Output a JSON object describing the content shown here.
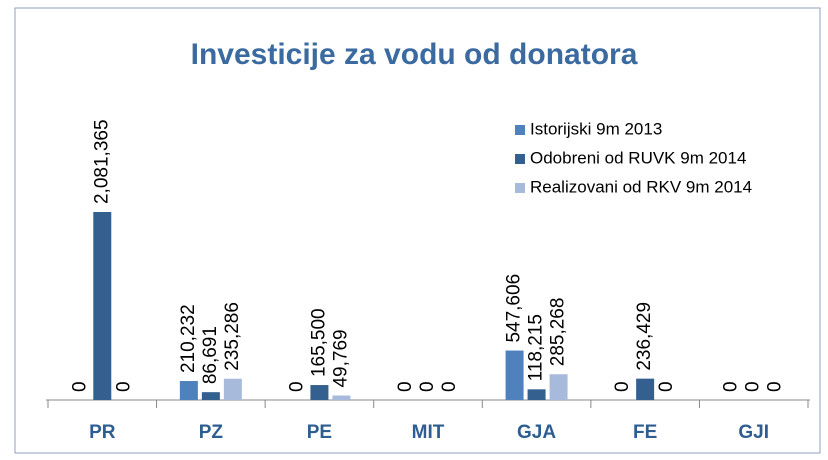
{
  "chart_data": {
    "type": "bar",
    "title": "Investicije za vodu od donatora",
    "categories": [
      "PR",
      "PZ",
      "PE",
      "MIT",
      "GJA",
      "FE",
      "GJI"
    ],
    "series": [
      {
        "name": "Istorijski 9m 2013",
        "color": "#4f81bd",
        "values": [
          0,
          210232,
          0,
          0,
          547606,
          0,
          0
        ],
        "value_labels": [
          "0",
          "210,232",
          "0",
          "0",
          "547,606",
          "0",
          "0"
        ]
      },
      {
        "name": "Odobreni od  RUVK 9m 2014",
        "color": "#33608f",
        "values": [
          2081365,
          86691,
          165500,
          0,
          118215,
          236429,
          0
        ],
        "value_labels": [
          "2,081,365",
          "86,691",
          "165,500",
          "0",
          "118,215",
          "236,429",
          "0"
        ]
      },
      {
        "name": "Realizovani od RKV 9m 2014",
        "color": "#a8badb",
        "values": [
          0,
          235286,
          49769,
          0,
          285268,
          0,
          0
        ],
        "value_labels": [
          "0",
          "235,286",
          "49,769",
          "0",
          "285,268",
          "0",
          "0"
        ]
      }
    ],
    "legend": "upper right"
  }
}
